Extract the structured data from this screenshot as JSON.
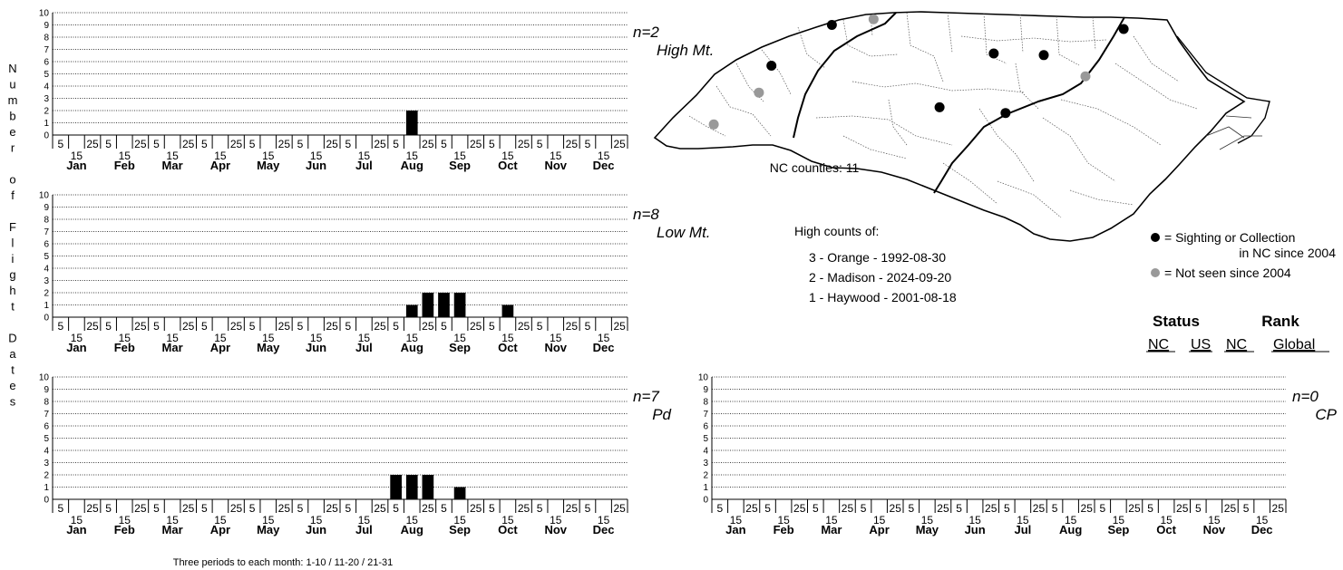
{
  "y_axis_label_letters": [
    "N",
    "u",
    "m",
    "b",
    "e",
    "r",
    "",
    "o",
    "f",
    "",
    "F",
    "l",
    "i",
    "g",
    "h",
    "t",
    "",
    "D",
    "a",
    "t",
    "e",
    "s"
  ],
  "periods_note": "Three periods to each month: 1-10 / 11-20 / 21-31",
  "months": [
    "Jan",
    "Feb",
    "Mar",
    "Apr",
    "May",
    "Jun",
    "Jul",
    "Aug",
    "Sep",
    "Oct",
    "Nov",
    "Dec"
  ],
  "period_ticks": [
    "5",
    "15",
    "25"
  ],
  "charts": [
    {
      "id": "high-mt",
      "n_label": "n=2",
      "region": "High Mt.",
      "chart_data": {
        "type": "bar",
        "title": "",
        "ylim": [
          0,
          10
        ],
        "yticks": [
          0,
          1,
          2,
          3,
          4,
          5,
          6,
          7,
          8,
          9,
          10
        ],
        "categories": [
          "Jan 5",
          "Jan 15",
          "Jan 25",
          "Feb 5",
          "Feb 15",
          "Feb 25",
          "Mar 5",
          "Mar 15",
          "Mar 25",
          "Apr 5",
          "Apr 15",
          "Apr 25",
          "May 5",
          "May 15",
          "May 25",
          "Jun 5",
          "Jun 15",
          "Jun 25",
          "Jul 5",
          "Jul 15",
          "Jul 25",
          "Aug 5",
          "Aug 15",
          "Aug 25",
          "Sep 5",
          "Sep 15",
          "Sep 25",
          "Oct 5",
          "Oct 15",
          "Oct 25",
          "Nov 5",
          "Nov 15",
          "Nov 25",
          "Dec 5",
          "Dec 15",
          "Dec 25"
        ],
        "values": [
          0,
          0,
          0,
          0,
          0,
          0,
          0,
          0,
          0,
          0,
          0,
          0,
          0,
          0,
          0,
          0,
          0,
          0,
          0,
          0,
          0,
          0,
          2,
          0,
          0,
          0,
          0,
          0,
          0,
          0,
          0,
          0,
          0,
          0,
          0,
          0
        ]
      }
    },
    {
      "id": "low-mt",
      "n_label": "n=8",
      "region": "Low Mt.",
      "chart_data": {
        "type": "bar",
        "title": "",
        "ylim": [
          0,
          10
        ],
        "yticks": [
          0,
          1,
          2,
          3,
          4,
          5,
          6,
          7,
          8,
          9,
          10
        ],
        "categories": [
          "Jan 5",
          "Jan 15",
          "Jan 25",
          "Feb 5",
          "Feb 15",
          "Feb 25",
          "Mar 5",
          "Mar 15",
          "Mar 25",
          "Apr 5",
          "Apr 15",
          "Apr 25",
          "May 5",
          "May 15",
          "May 25",
          "Jun 5",
          "Jun 15",
          "Jun 25",
          "Jul 5",
          "Jul 15",
          "Jul 25",
          "Aug 5",
          "Aug 15",
          "Aug 25",
          "Sep 5",
          "Sep 15",
          "Sep 25",
          "Oct 5",
          "Oct 15",
          "Oct 25",
          "Nov 5",
          "Nov 15",
          "Nov 25",
          "Dec 5",
          "Dec 15",
          "Dec 25"
        ],
        "values": [
          0,
          0,
          0,
          0,
          0,
          0,
          0,
          0,
          0,
          0,
          0,
          0,
          0,
          0,
          0,
          0,
          0,
          0,
          0,
          0,
          0,
          0,
          1,
          2,
          2,
          2,
          0,
          0,
          1,
          0,
          0,
          0,
          0,
          0,
          0,
          0
        ]
      }
    },
    {
      "id": "piedmont",
      "n_label": "n=7",
      "region": "Pd",
      "chart_data": {
        "type": "bar",
        "title": "",
        "ylim": [
          0,
          10
        ],
        "yticks": [
          0,
          1,
          2,
          3,
          4,
          5,
          6,
          7,
          8,
          9,
          10
        ],
        "categories": [
          "Jan 5",
          "Jan 15",
          "Jan 25",
          "Feb 5",
          "Feb 15",
          "Feb 25",
          "Mar 5",
          "Mar 15",
          "Mar 25",
          "Apr 5",
          "Apr 15",
          "Apr 25",
          "May 5",
          "May 15",
          "May 25",
          "Jun 5",
          "Jun 15",
          "Jun 25",
          "Jul 5",
          "Jul 15",
          "Jul 25",
          "Aug 5",
          "Aug 15",
          "Aug 25",
          "Sep 5",
          "Sep 15",
          "Sep 25",
          "Oct 5",
          "Oct 15",
          "Oct 25",
          "Nov 5",
          "Nov 15",
          "Nov 25",
          "Dec 5",
          "Dec 15",
          "Dec 25"
        ],
        "values": [
          0,
          0,
          0,
          0,
          0,
          0,
          0,
          0,
          0,
          0,
          0,
          0,
          0,
          0,
          0,
          0,
          0,
          0,
          0,
          0,
          0,
          2,
          2,
          2,
          0,
          1,
          0,
          0,
          0,
          0,
          0,
          0,
          0,
          0,
          0,
          0
        ]
      }
    },
    {
      "id": "coastal-plain",
      "n_label": "n=0",
      "region": "CP",
      "chart_data": {
        "type": "bar",
        "title": "",
        "ylim": [
          0,
          10
        ],
        "yticks": [
          0,
          1,
          2,
          3,
          4,
          5,
          6,
          7,
          8,
          9,
          10
        ],
        "categories": [
          "Jan 5",
          "Jan 15",
          "Jan 25",
          "Feb 5",
          "Feb 15",
          "Feb 25",
          "Mar 5",
          "Mar 15",
          "Mar 25",
          "Apr 5",
          "Apr 15",
          "Apr 25",
          "May 5",
          "May 15",
          "May 25",
          "Jun 5",
          "Jun 15",
          "Jun 25",
          "Jul 5",
          "Jul 15",
          "Jul 25",
          "Aug 5",
          "Aug 15",
          "Aug 25",
          "Sep 5",
          "Sep 15",
          "Sep 25",
          "Oct 5",
          "Oct 15",
          "Oct 25",
          "Nov 5",
          "Nov 15",
          "Nov 25",
          "Dec 5",
          "Dec 15",
          "Dec 25"
        ],
        "values": [
          0,
          0,
          0,
          0,
          0,
          0,
          0,
          0,
          0,
          0,
          0,
          0,
          0,
          0,
          0,
          0,
          0,
          0,
          0,
          0,
          0,
          0,
          0,
          0,
          0,
          0,
          0,
          0,
          0,
          0,
          0,
          0,
          0,
          0,
          0,
          0
        ]
      }
    }
  ],
  "map": {
    "counties_label": "NC counties: 11",
    "colors": {
      "recent": "#000000",
      "historic": "#999999",
      "outline": "#000000",
      "county_lines": "#555555"
    },
    "points": [
      {
        "status": "recent",
        "lon": -81.75,
        "lat": 36.45
      },
      {
        "status": "historic",
        "lon": -81.15,
        "lat": 36.52
      },
      {
        "status": "recent",
        "lon": -82.62,
        "lat": 35.95
      },
      {
        "status": "historic",
        "lon": -82.8,
        "lat": 35.62
      },
      {
        "status": "historic",
        "lon": -83.45,
        "lat": 35.23
      },
      {
        "status": "recent",
        "lon": -79.42,
        "lat": 36.1
      },
      {
        "status": "recent",
        "lon": -78.7,
        "lat": 36.08
      },
      {
        "status": "recent",
        "lon": -77.55,
        "lat": 36.4
      },
      {
        "status": "historic",
        "lon": -78.1,
        "lat": 35.82
      },
      {
        "status": "recent",
        "lon": -80.2,
        "lat": 35.44
      },
      {
        "status": "recent",
        "lon": -79.25,
        "lat": 35.37
      }
    ]
  },
  "high_counts": {
    "title": "High counts of:",
    "entries": [
      "3 - Orange - 1992-08-30",
      "2 - Madison - 2024-09-20",
      "1 - Haywood - 2001-08-18"
    ]
  },
  "legend": {
    "recent_line1": "= Sighting or Collection",
    "recent_line2": "in NC since 2004",
    "historic": "= Not seen since 2004"
  },
  "status_rank": {
    "status_label": "Status",
    "rank_label": "Rank",
    "nc": "NC",
    "us": "US",
    "nc2": "NC",
    "global": "Global"
  }
}
